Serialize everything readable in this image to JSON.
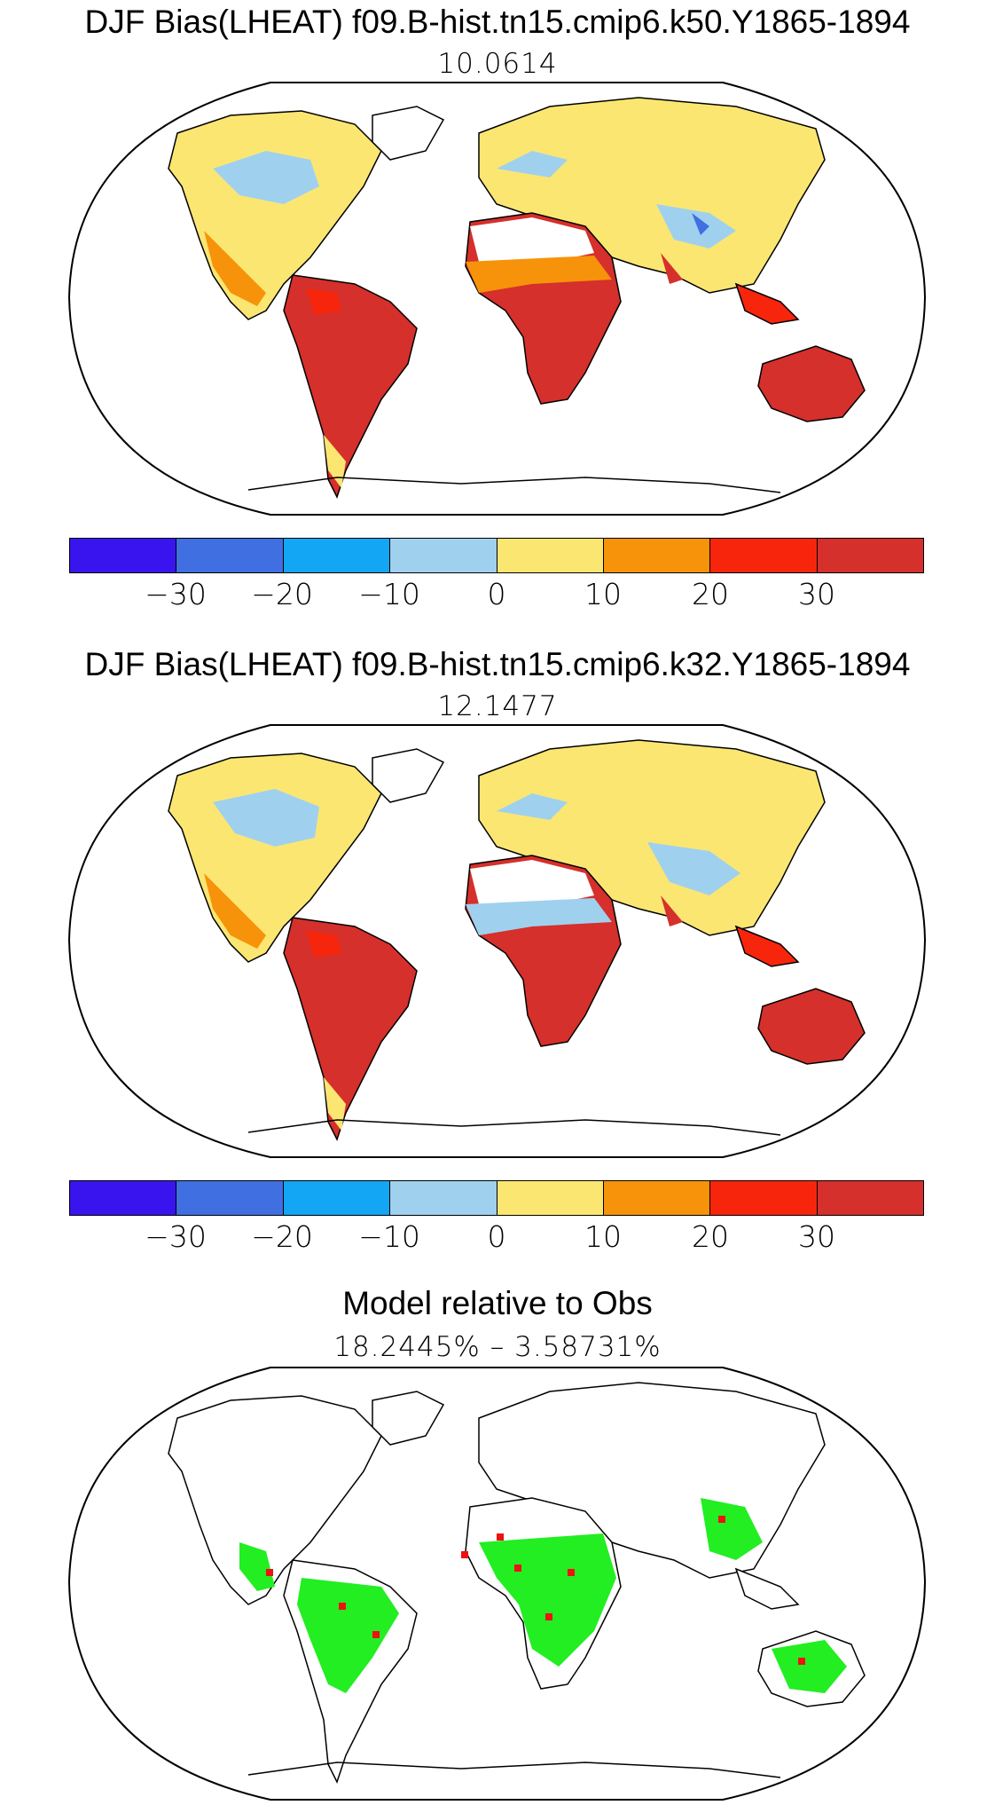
{
  "panels": [
    {
      "title": "DJF Bias(LHEAT) f09.B-hist.tn15.cmip6.k50.Y1865-1894",
      "value": "10.0614"
    },
    {
      "title": "DJF Bias(LHEAT) f09.B-hist.tn15.cmip6.k32.Y1865-1894",
      "value": "12.1477"
    },
    {
      "title": "Model relative to Obs",
      "value": "18.2445% – 3.58731%"
    }
  ],
  "colorbar": {
    "colors": [
      "#3a14ee",
      "#3f6fe0",
      "#12a6f5",
      "#9fd1ef",
      "#fbe672",
      "#f6930a",
      "#f7250c",
      "#d5302b"
    ],
    "ticks": [
      "−30",
      "−20",
      "−10",
      "0",
      "10",
      "20",
      "30"
    ]
  }
}
